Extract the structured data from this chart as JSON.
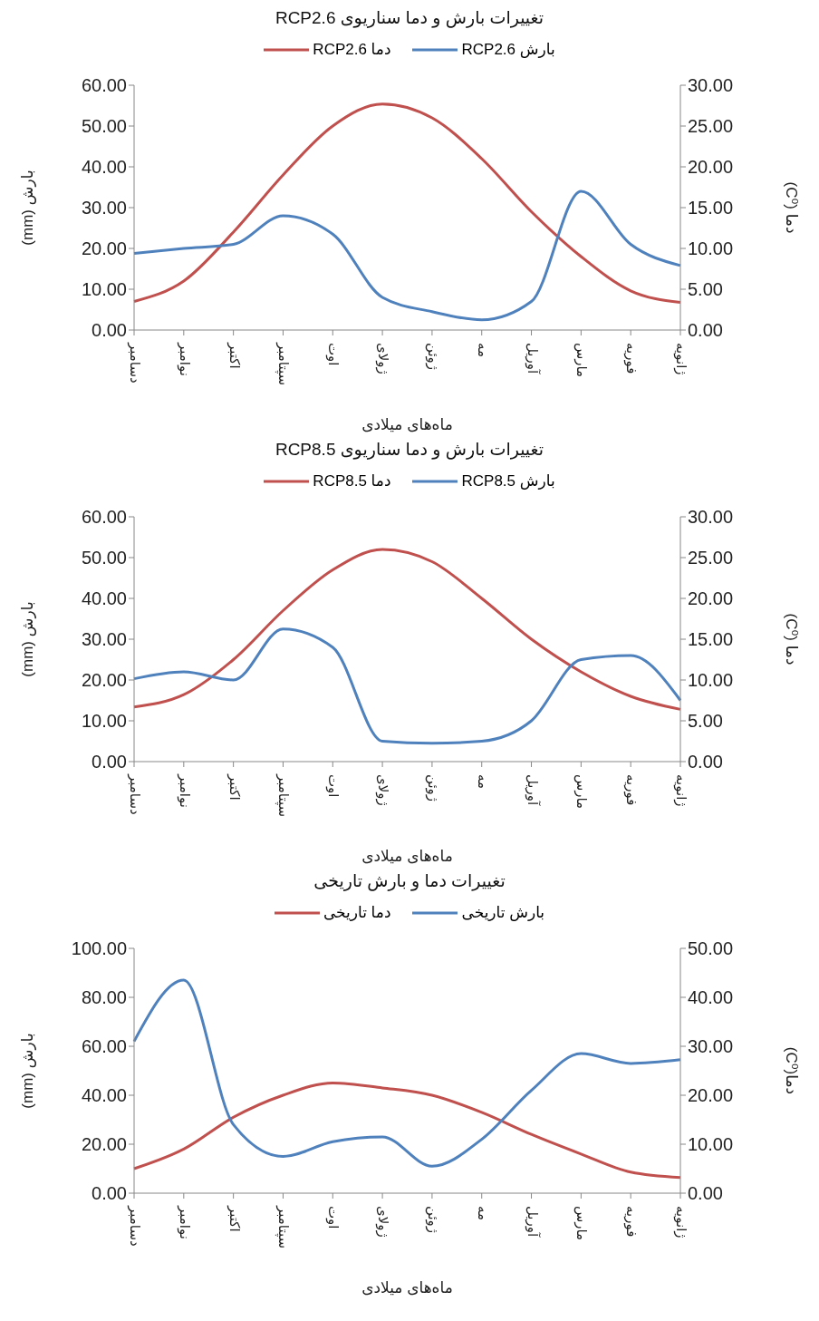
{
  "chart_data": [
    {
      "type": "line",
      "title": "تغییرات بارش و دما سناریوی RCP2.6",
      "xlabel": "ماه‌های میلادی",
      "ylabel": "بارش (mm)",
      "y2label": "دما (C⁰)",
      "categories": [
        "دسامبر",
        "نوامبر",
        "اکتبر",
        "سپتامبر",
        "اوت",
        "ژولای",
        "ژوئن",
        "مه",
        "آوریل",
        "مارس",
        "فوریه",
        "ژانویه"
      ],
      "series": [
        {
          "name": "دما RCP2.6",
          "color": "#c0504d",
          "axis": "y2",
          "values": [
            3.5,
            6,
            12,
            19,
            25,
            27.7,
            26,
            21,
            14.5,
            9,
            4.8,
            3.4
          ]
        },
        {
          "name": "بارش RCP2.6",
          "color": "#4f81bd",
          "values": [
            18.8,
            20,
            21,
            28,
            23.5,
            8,
            4.5,
            2.5,
            7,
            34,
            21,
            15.8
          ]
        }
      ],
      "ylim": [
        0,
        60
      ],
      "yticks": [
        {
          "value": 0,
          "label": "0.00"
        },
        {
          "value": 10,
          "label": "10.00"
        },
        {
          "value": 20,
          "label": "20.00"
        },
        {
          "value": 30,
          "label": "30.00"
        },
        {
          "value": 40,
          "label": "40.00"
        },
        {
          "value": 50,
          "label": "50.00"
        },
        {
          "value": 60,
          "label": "60.00"
        }
      ],
      "y2lim": [
        0,
        30
      ],
      "y2ticks": [
        {
          "value": 0,
          "label": "0.00"
        },
        {
          "value": 5,
          "label": "5.00"
        },
        {
          "value": 10,
          "label": "10.00"
        },
        {
          "value": 15,
          "label": "15.00"
        },
        {
          "value": 20,
          "label": "20.00"
        },
        {
          "value": 25,
          "label": "25.00"
        },
        {
          "value": 30,
          "label": "30.00"
        }
      ],
      "grid": false,
      "legend": "top",
      "marker": "none",
      "line_style": "solid"
    },
    {
      "type": "line",
      "title": "تغییرات بارش و دما سناریوی RCP8.5",
      "xlabel": "ماه‌های میلادی",
      "ylabel": "بارش (mm)",
      "y2label": "دما (C⁰)",
      "categories": [
        "دسامبر",
        "نوامبر",
        "اکتبر",
        "سپتامبر",
        "اوت",
        "ژولای",
        "ژوئن",
        "مه",
        "آوریل",
        "مارس",
        "فوریه",
        "ژانویه"
      ],
      "series": [
        {
          "name": "دما RCP8.5",
          "color": "#c0504d",
          "axis": "y2",
          "values": [
            6.7,
            8.2,
            12.5,
            18.5,
            23.5,
            26,
            24.5,
            20,
            15,
            11,
            8,
            6.4
          ]
        },
        {
          "name": "بارش RCP8.5",
          "color": "#4f81bd",
          "values": [
            20.3,
            22,
            20,
            32.5,
            28,
            5,
            4.5,
            5,
            10,
            25,
            26,
            15
          ]
        }
      ],
      "ylim": [
        0,
        60
      ],
      "yticks": [
        {
          "value": 0,
          "label": "0.00"
        },
        {
          "value": 10,
          "label": "10.00"
        },
        {
          "value": 20,
          "label": "20.00"
        },
        {
          "value": 30,
          "label": "30.00"
        },
        {
          "value": 40,
          "label": "40.00"
        },
        {
          "value": 50,
          "label": "50.00"
        },
        {
          "value": 60,
          "label": "60.00"
        }
      ],
      "y2lim": [
        0,
        30
      ],
      "y2ticks": [
        {
          "value": 0,
          "label": "0.00"
        },
        {
          "value": 5,
          "label": "5.00"
        },
        {
          "value": 10,
          "label": "10.00"
        },
        {
          "value": 15,
          "label": "15.00"
        },
        {
          "value": 20,
          "label": "20.00"
        },
        {
          "value": 25,
          "label": "25.00"
        },
        {
          "value": 30,
          "label": "30.00"
        }
      ],
      "grid": false,
      "legend": "top",
      "marker": "none",
      "line_style": "solid"
    },
    {
      "type": "line",
      "title": "تغییرات دما و بارش تاریخی",
      "xlabel": "ماه‌های میلادی",
      "ylabel": "بارش (mm)",
      "y2label": "دما(C⁰)",
      "categories": [
        "دسامبر",
        "نوامبر",
        "اکتبر",
        "سپتامبر",
        "اوت",
        "ژولای",
        "ژوئن",
        "مه",
        "آوریل",
        "مارس",
        "فوریه",
        "ژانویه"
      ],
      "series": [
        {
          "name": "دما تاریخی",
          "color": "#c0504d",
          "axis": "y2",
          "values": [
            5,
            9,
            15.5,
            20,
            22.5,
            21.5,
            20,
            16.5,
            12,
            8,
            4.3,
            3.2
          ]
        },
        {
          "name": "بارش تاریخی",
          "color": "#4f81bd",
          "values": [
            62,
            87,
            28,
            15,
            21,
            23,
            11,
            22,
            42,
            57,
            53,
            54.5
          ]
        }
      ],
      "ylim": [
        0,
        100
      ],
      "yticks": [
        {
          "value": 0,
          "label": "0.00"
        },
        {
          "value": 20,
          "label": "20.00"
        },
        {
          "value": 40,
          "label": "40.00"
        },
        {
          "value": 60,
          "label": "60.00"
        },
        {
          "value": 80,
          "label": "80.00"
        },
        {
          "value": 100,
          "label": "100.00"
        }
      ],
      "y2lim": [
        0,
        50
      ],
      "y2ticks": [
        {
          "value": 0,
          "label": "0.00"
        },
        {
          "value": 10,
          "label": "10.00"
        },
        {
          "value": 20,
          "label": "20.00"
        },
        {
          "value": 30,
          "label": "30.00"
        },
        {
          "value": 40,
          "label": "40.00"
        },
        {
          "value": 50,
          "label": "50.00"
        }
      ],
      "grid": false,
      "legend": "top",
      "marker": "none",
      "line_style": "solid"
    }
  ]
}
